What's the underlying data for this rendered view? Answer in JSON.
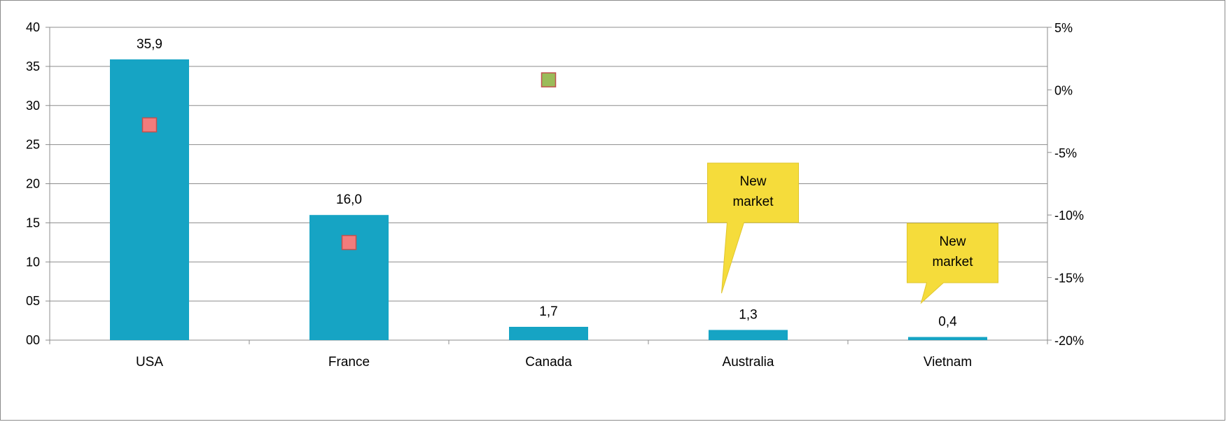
{
  "chart_data": {
    "type": "bar",
    "categories": [
      "USA",
      "France",
      "Canada",
      "Australia",
      "Vietnam"
    ],
    "values": [
      35.9,
      16.0,
      1.7,
      1.3,
      0.4
    ],
    "data_labels": [
      "35,9",
      "16,0",
      "1,7",
      "1,3",
      "0,4"
    ],
    "secondary_series": {
      "type": "scatter",
      "values": [
        -2.8,
        -12.2,
        0.8,
        null,
        null
      ],
      "marker_colors": [
        "#f27c7c",
        "#f27c7c",
        "#9bbb59",
        null,
        null
      ]
    },
    "ylim": [
      0,
      40
    ],
    "y_ticks": [
      "00",
      "05",
      "10",
      "15",
      "20",
      "25",
      "30",
      "35",
      "40"
    ],
    "y2lim": [
      -20,
      5
    ],
    "y2_ticks": [
      "-20%",
      "-15%",
      "-10%",
      "-5%",
      "0%",
      "5%"
    ],
    "grid": true,
    "bar_color": "#16a4c4",
    "annotations": [
      {
        "category": "Australia",
        "lines": [
          "New",
          "market"
        ]
      },
      {
        "category": "Vietnam",
        "lines": [
          "New",
          "market"
        ]
      }
    ],
    "callout_color": "#f5dc3b"
  }
}
